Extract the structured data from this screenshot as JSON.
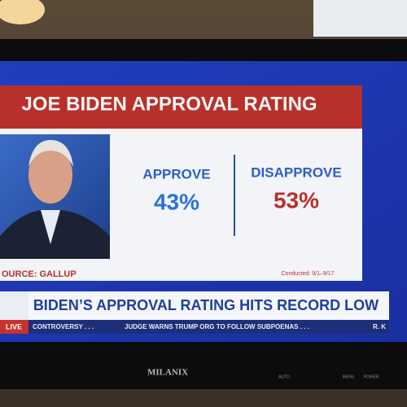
{
  "graphic": {
    "title": "JOE BIDEN APPROVAL RATING",
    "approve": {
      "label": "APPROVE",
      "value": "43%"
    },
    "disapprove": {
      "label": "DISAPPROVE",
      "value": "53%"
    },
    "source": "OURCE: GALLUP",
    "conducted": "Conducted: 9/1–9/17"
  },
  "lower_third": {
    "headline": "BIDEN’S APPROVAL RATING HITS RECORD LOW",
    "live": "LIVE",
    "ticker": [
      "CONTROVERSY . . .",
      "JUDGE WARNS TRUMP ORG TO FOLLOW SUBPOENAS . . .",
      "R. K"
    ]
  },
  "tv": {
    "brand": "MILANIX",
    "buttons": [
      "AUTO",
      "MENU",
      "POWER"
    ]
  }
}
